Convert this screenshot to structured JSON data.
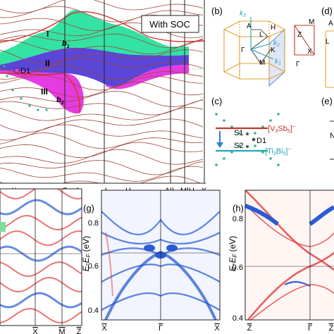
{
  "panels": {
    "a": {
      "soc_label": "With SOC",
      "region_labels": [
        "I",
        "II",
        "III",
        "D1"
      ],
      "band_labels": [
        "b",
        "1",
        "b",
        "2"
      ],
      "k_ticks": [
        "K",
        "Γ",
        "A",
        "L",
        "H",
        "A|L",
        "M|H",
        "K"
      ]
    },
    "b": {
      "label": "(b)",
      "points": [
        "A",
        "L",
        "H",
        "Γ",
        "M",
        "K",
        "Z",
        "M",
        "X",
        "Γ"
      ],
      "k_labels": [
        "k",
        "3",
        "k",
        "2",
        "k",
        "1"
      ]
    },
    "c": {
      "label": "(c)",
      "layer_top": [
        "[V",
        "3",
        "Sb",
        "5",
        "]",
        "−"
      ],
      "layer_bottom": [
        "[Ti",
        "3",
        "Bi",
        "5",
        "]",
        "−"
      ],
      "points": [
        "S1",
        "S2",
        "D1"
      ]
    },
    "d": {
      "label": "(d)",
      "chars": [
        "A",
        "L"
      ]
    },
    "e": {
      "label": "(e)",
      "char": "N"
    },
    "f": {
      "x_ticks": [
        "X",
        "M",
        "Z"
      ]
    },
    "g": {
      "label": "(g)",
      "y_axis": [
        "E",
        "-",
        "E",
        "F",
        "(eV)"
      ],
      "y_ticks": [
        "0.8",
        "0.6",
        "0.4"
      ],
      "x_ticks": [
        "X",
        "Γ",
        "X"
      ]
    },
    "h": {
      "label": "(h)",
      "y_axis": [
        "E",
        "-",
        "E",
        "F",
        "(eV)"
      ],
      "y_ticks": [
        "0.8",
        "0.6",
        "0.4"
      ],
      "x_ticks": [
        "Z",
        "Γ",
        "Z"
      ]
    }
  },
  "colors": {
    "band_line": "#a0453c",
    "region_I": "#33e3a3",
    "region_II": "#5a46d8",
    "region_III": "#e43ce0",
    "surface_red": "#e33a3a",
    "surface_blue": "#2a5ad6",
    "teal": "#22a6b3",
    "dots": "#2bb58c"
  }
}
